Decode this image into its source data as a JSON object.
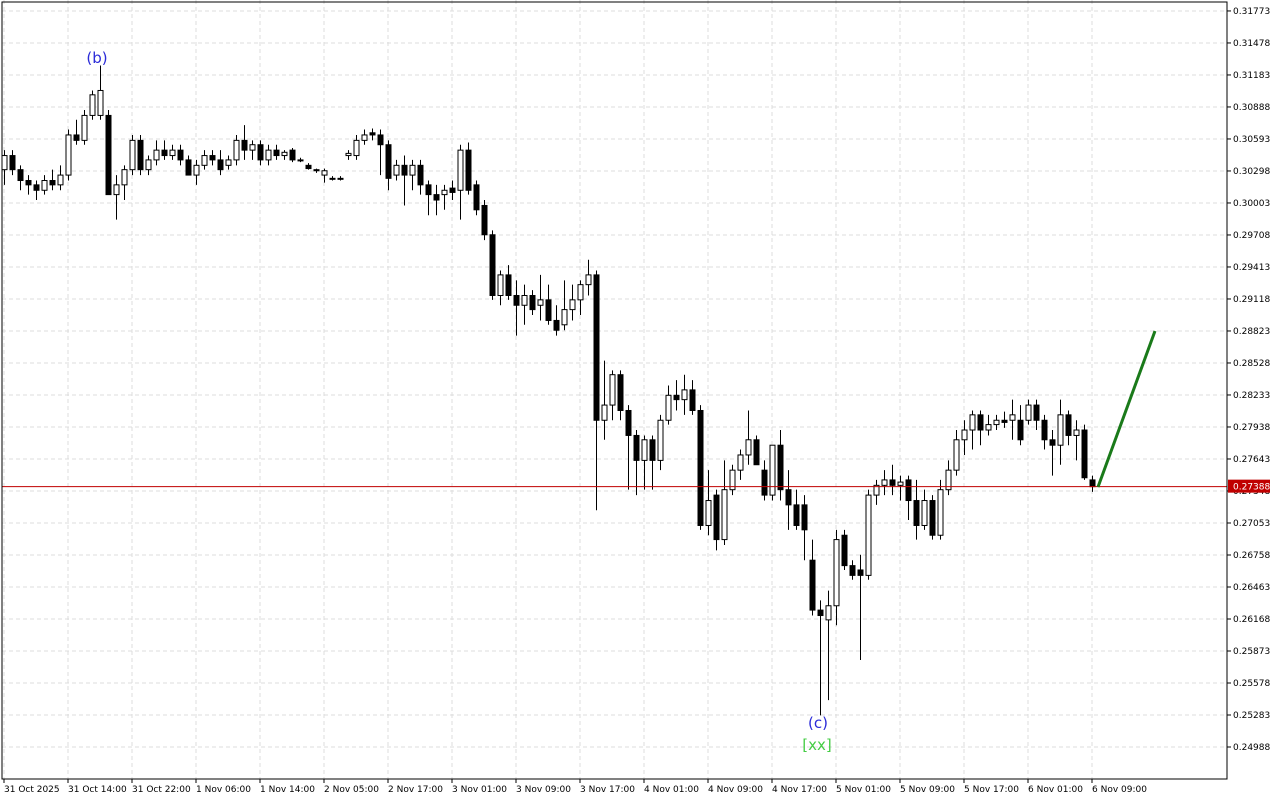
{
  "chart_data": {
    "type": "candlestick",
    "current_price": 0.27388,
    "current_price_color": "#c00000",
    "up_color": "#ffffff",
    "down_color": "#000000",
    "grid": true,
    "ylim": [
      0.24693,
      0.31874
    ],
    "yticks": [
      0.31773,
      0.31478,
      0.31183,
      0.30888,
      0.30593,
      0.30298,
      0.30003,
      0.29708,
      0.29413,
      0.29118,
      0.28823,
      0.28528,
      0.28233,
      0.27938,
      0.27643,
      0.27348,
      0.27053,
      0.26758,
      0.26463,
      0.26168,
      0.25873,
      0.25578,
      0.25283,
      0.24988
    ],
    "xlim": [
      -0.5,
      152.875
    ],
    "xticks": [
      {
        "value": 0,
        "label": "31 Oct 2025"
      },
      {
        "value": 8,
        "label": "31 Oct 14:00"
      },
      {
        "value": 16,
        "label": "31 Oct 22:00"
      },
      {
        "value": 24,
        "label": "1 Nov 06:00"
      },
      {
        "value": 32,
        "label": "1 Nov 14:00"
      },
      {
        "value": 40,
        "label": "2 Nov 05:00"
      },
      {
        "value": 48,
        "label": "2 Nov 17:00"
      },
      {
        "value": 56,
        "label": "3 Nov 01:00"
      },
      {
        "value": 64,
        "label": "3 Nov 09:00"
      },
      {
        "value": 72,
        "label": "3 Nov 17:00"
      },
      {
        "value": 80,
        "label": "4 Nov 01:00"
      },
      {
        "value": 88,
        "label": "4 Nov 09:00"
      },
      {
        "value": 96,
        "label": "4 Nov 17:00"
      },
      {
        "value": 104,
        "label": "5 Nov 01:00"
      },
      {
        "value": 112,
        "label": "5 Nov 09:00"
      },
      {
        "value": 120,
        "label": "5 Nov 17:00"
      },
      {
        "value": 128,
        "label": "6 Nov 01:00"
      },
      {
        "value": 136,
        "label": "6 Nov 09:00"
      }
    ],
    "open": [
      0.3031,
      0.3044,
      0.3031,
      0.3021,
      0.3017,
      0.3012,
      0.3021,
      0.3017,
      0.3026,
      0.3063,
      0.3058,
      0.3081,
      0.3081,
      0.3081,
      0.3008,
      0.3017,
      0.3031,
      0.3058,
      0.3031,
      0.304,
      0.3049,
      0.3044,
      0.3049,
      0.304,
      0.3026,
      0.3035,
      0.3044,
      0.304,
      0.3035,
      0.304,
      0.3058,
      0.3049,
      0.3054,
      0.304,
      0.3049,
      0.3044,
      0.3049,
      0.304,
      0.3035,
      0.3031,
      0.3026,
      0.3023,
      0.3023,
      0.3044,
      0.3044,
      0.3058,
      0.3065,
      0.3063,
      0.3054,
      0.3026,
      0.3035,
      0.3026,
      0.3035,
      0.3017,
      0.3008,
      0.3008,
      0.3014,
      0.3012,
      0.3049,
      0.3017,
      0.2998,
      0.2971,
      0.2915,
      0.2934,
      0.2915,
      0.2906,
      0.2915,
      0.2906,
      0.2911,
      0.2892,
      0.2888,
      0.2902,
      0.2911,
      0.2925,
      0.2934,
      0.28,
      0.2814,
      0.2842,
      0.2809,
      0.2786,
      0.2763,
      0.2782,
      0.2763,
      0.28,
      0.2823,
      0.2819,
      0.2828,
      0.2809,
      0.2703,
      0.2731,
      0.269,
      0.2736,
      0.2754,
      0.2768,
      0.2782,
      0.2754,
      0.2731,
      0.2777,
      0.2736,
      0.2722,
      0.2722,
      0.2671,
      0.2625,
      0.2616,
      0.2629,
      0.2694,
      0.2666,
      0.2662,
      0.2657,
      0.2731,
      0.274,
      0.2745,
      0.274,
      0.2745,
      0.2726,
      0.2703,
      0.2726,
      0.2694,
      0.2736,
      0.2754,
      0.2782,
      0.2791,
      0.2805,
      0.2791,
      0.2796,
      0.28,
      0.28,
      0.28,
      0.28,
      0.2814,
      0.28,
      0.2782,
      0.2777,
      0.2805,
      0.2786,
      0.2791,
      0.2745
    ],
    "high": [
      0.3049,
      0.3049,
      0.3035,
      0.3026,
      0.3021,
      0.3026,
      0.3031,
      0.3035,
      0.3068,
      0.3077,
      0.3086,
      0.3104,
      0.3127,
      0.3086,
      0.3026,
      0.3035,
      0.3063,
      0.3063,
      0.3044,
      0.3058,
      0.3058,
      0.3054,
      0.3054,
      0.3044,
      0.304,
      0.3049,
      0.3049,
      0.3049,
      0.3044,
      0.3063,
      0.3072,
      0.3058,
      0.3058,
      0.3054,
      0.3054,
      0.3049,
      0.3051,
      0.3042,
      0.3037,
      0.3032,
      0.3032,
      0.3025,
      0.3025,
      0.3049,
      0.3063,
      0.3068,
      0.3069,
      0.3068,
      0.3058,
      0.304,
      0.3044,
      0.304,
      0.304,
      0.3021,
      0.3017,
      0.3017,
      0.3021,
      0.3054,
      0.3056,
      0.3021,
      0.3003,
      0.2975,
      0.2938,
      0.2943,
      0.2929,
      0.2925,
      0.292,
      0.2934,
      0.2925,
      0.2906,
      0.2929,
      0.2925,
      0.2929,
      0.2948,
      0.2938,
      0.2855,
      0.2846,
      0.2846,
      0.2814,
      0.2791,
      0.2786,
      0.2786,
      0.2805,
      0.2832,
      0.2837,
      0.2842,
      0.2837,
      0.2814,
      0.2754,
      0.2736,
      0.2763,
      0.2759,
      0.2773,
      0.2809,
      0.2786,
      0.2763,
      0.2777,
      0.2791,
      0.2754,
      0.2736,
      0.2731,
      0.269,
      0.2634,
      0.2643,
      0.2699,
      0.2699,
      0.2671,
      0.2676,
      0.2736,
      0.2745,
      0.2754,
      0.2759,
      0.2749,
      0.2749,
      0.2745,
      0.2736,
      0.2731,
      0.2745,
      0.2763,
      0.2791,
      0.28,
      0.2809,
      0.2809,
      0.2805,
      0.2805,
      0.2808,
      0.2819,
      0.2814,
      0.2819,
      0.2819,
      0.2805,
      0.2791,
      0.2819,
      0.2809,
      0.28,
      0.2796,
      0.2749
    ],
    "low": [
      0.3017,
      0.3026,
      0.3012,
      0.3008,
      0.3003,
      0.3008,
      0.3012,
      0.3012,
      0.3021,
      0.3054,
      0.3054,
      0.3077,
      0.3077,
      0.3008,
      0.2985,
      0.3003,
      0.3026,
      0.3026,
      0.3026,
      0.3035,
      0.304,
      0.304,
      0.3035,
      0.3026,
      0.3017,
      0.3031,
      0.3035,
      0.3026,
      0.3031,
      0.3035,
      0.304,
      0.304,
      0.3035,
      0.3035,
      0.304,
      0.304,
      0.3038,
      0.3038,
      0.3031,
      0.3028,
      0.3019,
      0.3021,
      0.3021,
      0.304,
      0.304,
      0.3054,
      0.3058,
      0.3026,
      0.3012,
      0.3021,
      0.2998,
      0.3012,
      0.3008,
      0.2989,
      0.2989,
      0.2994,
      0.3003,
      0.2985,
      0.3008,
      0.2989,
      0.2966,
      0.2911,
      0.2906,
      0.2911,
      0.2878,
      0.2888,
      0.2897,
      0.2892,
      0.2888,
      0.2878,
      0.2883,
      0.2892,
      0.2897,
      0.2915,
      0.2717,
      0.2782,
      0.28,
      0.28,
      0.2736,
      0.2731,
      0.2736,
      0.2736,
      0.2754,
      0.2796,
      0.2809,
      0.2805,
      0.2805,
      0.2699,
      0.2694,
      0.268,
      0.2685,
      0.2731,
      0.2745,
      0.2759,
      0.2759,
      0.2726,
      0.2726,
      0.2726,
      0.2699,
      0.2699,
      0.2671,
      0.262,
      0.2528,
      0.2542,
      0.2611,
      0.2662,
      0.2653,
      0.2579,
      0.2653,
      0.2722,
      0.2731,
      0.2731,
      0.2726,
      0.2708,
      0.269,
      0.2699,
      0.269,
      0.269,
      0.2731,
      0.2749,
      0.2768,
      0.2773,
      0.2777,
      0.2786,
      0.2791,
      0.2793,
      0.2782,
      0.2777,
      0.2796,
      0.2791,
      0.2773,
      0.2749,
      0.2759,
      0.2777,
      0.2763,
      0.2745,
      0.2734
    ],
    "close": [
      0.3044,
      0.3031,
      0.3021,
      0.3017,
      0.3012,
      0.3021,
      0.3017,
      0.3026,
      0.3063,
      0.3058,
      0.3081,
      0.31,
      0.3104,
      0.3008,
      0.3017,
      0.3031,
      0.3058,
      0.3031,
      0.304,
      0.3049,
      0.3044,
      0.3049,
      0.304,
      0.3026,
      0.3035,
      0.3044,
      0.304,
      0.3031,
      0.304,
      0.3058,
      0.3049,
      0.3054,
      0.304,
      0.3049,
      0.3044,
      0.3047,
      0.304,
      0.304,
      0.3032,
      0.303,
      0.303,
      0.3023,
      0.3023,
      0.3046,
      0.3058,
      0.3063,
      0.3063,
      0.3054,
      0.3023,
      0.3035,
      0.3026,
      0.3035,
      0.3017,
      0.3008,
      0.3003,
      0.3012,
      0.301,
      0.3049,
      0.3012,
      0.2994,
      0.2971,
      0.2915,
      0.2934,
      0.2915,
      0.2906,
      0.2915,
      0.2902,
      0.2911,
      0.2892,
      0.2883,
      0.2902,
      0.2911,
      0.2925,
      0.2934,
      0.28,
      0.2814,
      0.2842,
      0.2809,
      0.2786,
      0.2763,
      0.2782,
      0.2763,
      0.28,
      0.2823,
      0.2819,
      0.2828,
      0.2809,
      0.2703,
      0.2726,
      0.269,
      0.2736,
      0.2754,
      0.2768,
      0.2782,
      0.2759,
      0.2731,
      0.2777,
      0.2736,
      0.2722,
      0.2703,
      0.2699,
      0.2625,
      0.262,
      0.2629,
      0.269,
      0.2666,
      0.2657,
      0.2657,
      0.2731,
      0.274,
      0.2745,
      0.274,
      0.2743,
      0.2726,
      0.2703,
      0.2726,
      0.2694,
      0.2736,
      0.2754,
      0.2782,
      0.2791,
      0.2805,
      0.2791,
      0.2796,
      0.28,
      0.2798,
      0.2805,
      0.2782,
      0.2814,
      0.28,
      0.2782,
      0.2777,
      0.2805,
      0.2786,
      0.2791,
      0.2747,
      0.27388
    ]
  },
  "annotations": [
    {
      "text": "(b)"
    },
    {
      "text": "(c)"
    },
    {
      "text": "[xx]"
    }
  ]
}
